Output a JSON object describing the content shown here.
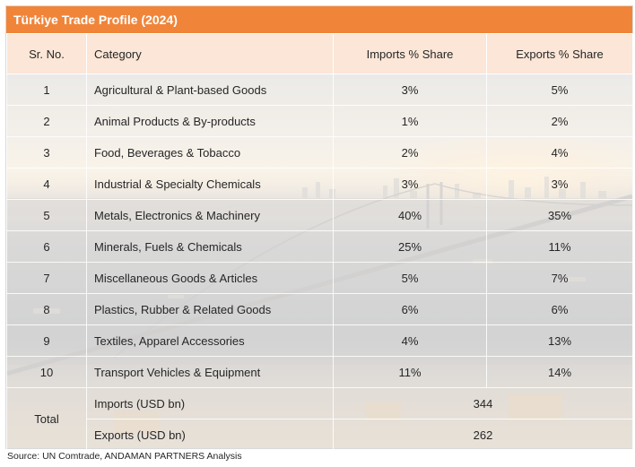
{
  "title": "Türkiye Trade Profile (2024)",
  "columns": {
    "sr_no": "Sr. No.",
    "category": "Category",
    "imports": "Imports % Share",
    "exports": "Exports % Share"
  },
  "rows": [
    {
      "sr": "1",
      "category": "Agricultural & Plant-based Goods",
      "imports": "3%",
      "exports": "5%"
    },
    {
      "sr": "2",
      "category": "Animal Products & By-products",
      "imports": "1%",
      "exports": "2%"
    },
    {
      "sr": "3",
      "category": "Food, Beverages & Tobacco",
      "imports": "2%",
      "exports": "4%"
    },
    {
      "sr": "4",
      "category": "Industrial & Specialty Chemicals",
      "imports": "3%",
      "exports": "3%"
    },
    {
      "sr": "5",
      "category": "Metals, Electronics & Machinery",
      "imports": "40%",
      "exports": "35%"
    },
    {
      "sr": "6",
      "category": "Minerals, Fuels & Chemicals",
      "imports": "25%",
      "exports": "11%"
    },
    {
      "sr": "7",
      "category": "Miscellaneous Goods & Articles",
      "imports": "5%",
      "exports": "7%"
    },
    {
      "sr": "8",
      "category": "Plastics, Rubber & Related Goods",
      "imports": "6%",
      "exports": "6%"
    },
    {
      "sr": "9",
      "category": "Textiles, Apparel  Accessories",
      "imports": "4%",
      "exports": "13%"
    },
    {
      "sr": "10",
      "category": "Transport Vehicles & Equipment",
      "imports": "11%",
      "exports": "14%"
    }
  ],
  "total": {
    "label": "Total",
    "imports_label": "Imports (USD bn)",
    "imports_value": "344",
    "exports_label": "Exports (USD bn)",
    "exports_value": "262"
  },
  "source": "Source: UN Comtrade, ANDAMAN PARTNERS Analysis",
  "colors": {
    "title_bar": "#f0853a",
    "header_fill": "#fbe6d7",
    "text": "#262626"
  }
}
